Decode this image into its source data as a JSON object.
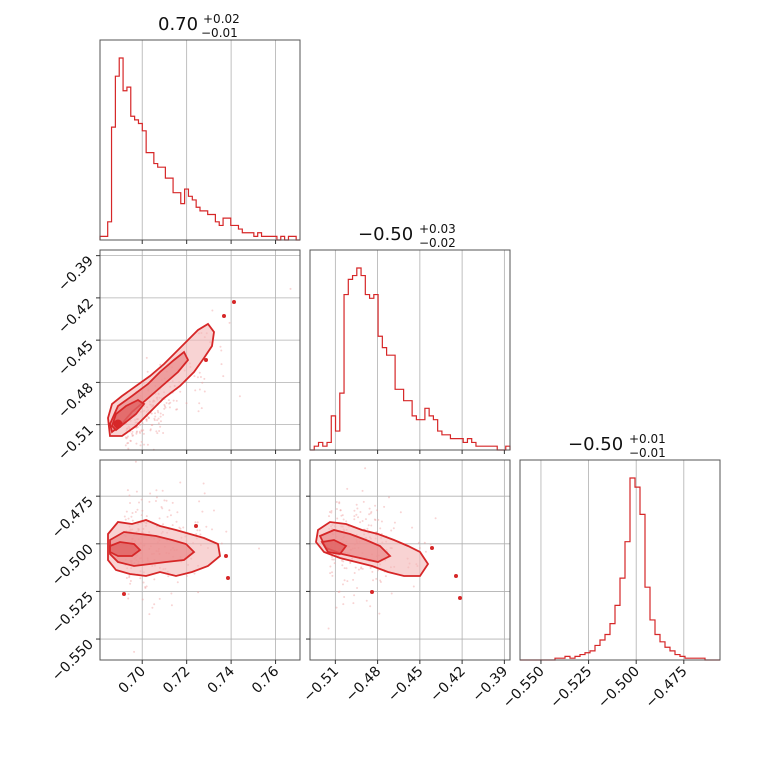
{
  "chart_data": {
    "type": "corner",
    "color": "#d62728",
    "parameters": [
      {
        "title": {
          "main": "0.70",
          "plus": "+0.02",
          "minus": "−0.01"
        },
        "range": [
          0.681,
          0.771
        ],
        "ticks": [
          0.7,
          0.72,
          0.74,
          0.76
        ],
        "tick_labels": [
          "0.70",
          "0.72",
          "0.74",
          "0.76"
        ]
      },
      {
        "title": {
          "main": "−0.50",
          "plus": "+0.03",
          "minus": "−0.02"
        },
        "range": [
          -0.528,
          -0.386
        ],
        "ticks": [
          -0.51,
          -0.48,
          -0.45,
          -0.42,
          -0.39
        ],
        "tick_labels": [
          "−0.51",
          "−0.48",
          "−0.45",
          "−0.42",
          "−0.39"
        ]
      },
      {
        "title": {
          "main": "−0.50",
          "plus": "+0.01",
          "minus": "−0.01"
        },
        "range": [
          -0.561,
          -0.456
        ],
        "ticks": [
          -0.55,
          -0.525,
          -0.5,
          -0.475
        ],
        "tick_labels": [
          "−0.550",
          "−0.525",
          "−0.500",
          "−0.475"
        ]
      }
    ],
    "histograms": [
      {
        "param": 0,
        "bin_edges": [
          0.681,
          0.771
        ],
        "counts": [
          2,
          2,
          10,
          62,
          90,
          100,
          82,
          84,
          68,
          66,
          64,
          60,
          48,
          48,
          42,
          40,
          40,
          34,
          34,
          26,
          26,
          20,
          28,
          24,
          22,
          18,
          16,
          16,
          14,
          14,
          10,
          8,
          12,
          12,
          8,
          8,
          6,
          4,
          4,
          4,
          2,
          4,
          2,
          2,
          2,
          2,
          0,
          2,
          0,
          2,
          2,
          0
        ]
      },
      {
        "param": 1,
        "bin_edges": [
          -0.528,
          -0.386
        ],
        "counts": [
          0,
          2,
          4,
          2,
          4,
          18,
          10,
          30,
          82,
          90,
          92,
          96,
          92,
          82,
          80,
          82,
          60,
          54,
          50,
          50,
          32,
          32,
          26,
          26,
          18,
          16,
          16,
          22,
          18,
          16,
          10,
          8,
          8,
          6,
          6,
          6,
          4,
          6,
          4,
          2,
          2,
          2,
          2,
          2,
          0,
          0,
          2
        ]
      },
      {
        "param": 2,
        "bin_edges": [
          -0.561,
          -0.456
        ],
        "counts": [
          0,
          0,
          0,
          0,
          0,
          0,
          0,
          1,
          1,
          2,
          1,
          2,
          3,
          4,
          5,
          8,
          11,
          14,
          20,
          30,
          45,
          65,
          100,
          95,
          80,
          40,
          22,
          14,
          10,
          7,
          5,
          3,
          2,
          1,
          1,
          1,
          1,
          0,
          0,
          0
        ]
      }
    ],
    "scatter": [
      {
        "x": 0,
        "y": 1,
        "center": [
          0.7,
          -0.5
        ],
        "spread": [
          0.012,
          0.02
        ]
      },
      {
        "x": 0,
        "y": 2,
        "center": [
          0.7,
          -0.5
        ],
        "spread": [
          0.012,
          0.01
        ]
      },
      {
        "x": 1,
        "y": 2,
        "center": [
          -0.5,
          -0.5
        ],
        "spread": [
          0.02,
          0.01
        ]
      }
    ]
  }
}
